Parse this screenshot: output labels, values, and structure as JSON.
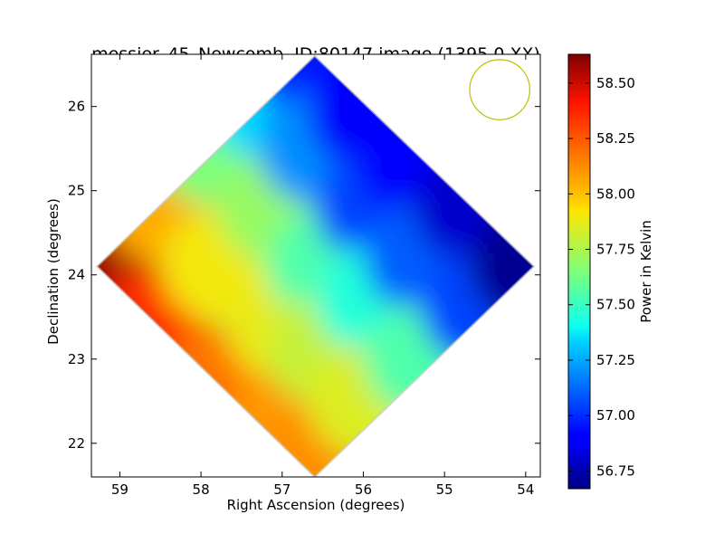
{
  "chart_data": {
    "type": "heatmap",
    "title": "messier_45_Newcomb, ID:80147 image (1395.0,XX)",
    "xlabel": "Right Ascension (degrees)",
    "ylabel": "Declination (degrees)",
    "xlim": [
      59.35,
      53.82
    ],
    "ylim": [
      21.6,
      26.62
    ],
    "x_ticks": [
      {
        "value": 59,
        "label": "59"
      },
      {
        "value": 58,
        "label": "58"
      },
      {
        "value": 57,
        "label": "57"
      },
      {
        "value": 56,
        "label": "56"
      },
      {
        "value": 55,
        "label": "55"
      },
      {
        "value": 54,
        "label": "54"
      }
    ],
    "y_ticks": [
      {
        "value": 22,
        "label": "22"
      },
      {
        "value": 23,
        "label": "23"
      },
      {
        "value": 24,
        "label": "24"
      },
      {
        "value": 25,
        "label": "25"
      },
      {
        "value": 26,
        "label": "26"
      }
    ],
    "colorbar": {
      "label": "Power in Kelvin",
      "colormap": "jet",
      "range": [
        56.67,
        58.63
      ],
      "ticks": [
        {
          "value": 56.75,
          "label": "56.75"
        },
        {
          "value": 57.0,
          "label": "57.00"
        },
        {
          "value": 57.25,
          "label": "57.25"
        },
        {
          "value": 57.5,
          "label": "57.50"
        },
        {
          "value": 57.75,
          "label": "57.75"
        },
        {
          "value": 58.0,
          "label": "58.00"
        },
        {
          "value": 58.25,
          "label": "58.25"
        },
        {
          "value": 58.5,
          "label": "58.50"
        }
      ]
    },
    "footprint": {
      "shape": "diamond",
      "left_vertex": {
        "ra": 59.28,
        "dec": 24.1
      },
      "top_vertex": {
        "ra": 56.6,
        "dec": 26.6
      },
      "right_vertex": {
        "ra": 53.9,
        "dec": 24.1
      },
      "bottom_vertex": {
        "ra": 56.6,
        "dec": 21.6
      }
    },
    "samples": [
      {
        "ra": 59.2,
        "dec": 24.1,
        "value": 58.58
      },
      {
        "ra": 58.5,
        "dec": 24.8,
        "value": 58.05
      },
      {
        "ra": 58.6,
        "dec": 23.4,
        "value": 58.35
      },
      {
        "ra": 57.9,
        "dec": 25.5,
        "value": 57.65
      },
      {
        "ra": 57.8,
        "dec": 24.1,
        "value": 57.9
      },
      {
        "ra": 57.8,
        "dec": 22.7,
        "value": 58.18
      },
      {
        "ra": 57.2,
        "dec": 26.0,
        "value": 57.35
      },
      {
        "ra": 57.1,
        "dec": 24.8,
        "value": 57.7
      },
      {
        "ra": 57.0,
        "dec": 23.4,
        "value": 57.88
      },
      {
        "ra": 57.0,
        "dec": 22.2,
        "value": 58.1
      },
      {
        "ra": 56.6,
        "dec": 26.4,
        "value": 56.95
      },
      {
        "ra": 56.6,
        "dec": 25.5,
        "value": 57.2
      },
      {
        "ra": 56.5,
        "dec": 24.1,
        "value": 57.55
      },
      {
        "ra": 56.5,
        "dec": 23.1,
        "value": 57.8
      },
      {
        "ra": 56.6,
        "dec": 21.8,
        "value": 58.12
      },
      {
        "ra": 56.0,
        "dec": 25.9,
        "value": 56.88
      },
      {
        "ra": 55.9,
        "dec": 24.8,
        "value": 57.05
      },
      {
        "ra": 55.9,
        "dec": 23.7,
        "value": 57.45
      },
      {
        "ra": 56.0,
        "dec": 22.5,
        "value": 57.85
      },
      {
        "ra": 55.4,
        "dec": 25.3,
        "value": 56.9
      },
      {
        "ra": 55.3,
        "dec": 24.2,
        "value": 57.1
      },
      {
        "ra": 55.3,
        "dec": 23.0,
        "value": 57.55
      },
      {
        "ra": 54.7,
        "dec": 24.8,
        "value": 56.8
      },
      {
        "ra": 54.6,
        "dec": 23.6,
        "value": 57.05
      },
      {
        "ra": 54.0,
        "dec": 24.1,
        "value": 56.7
      }
    ],
    "beam": {
      "ra": 54.32,
      "dec": 26.2,
      "radius_deg": 0.37,
      "color": "#bfbf00"
    },
    "grid": false,
    "legend": "none"
  }
}
